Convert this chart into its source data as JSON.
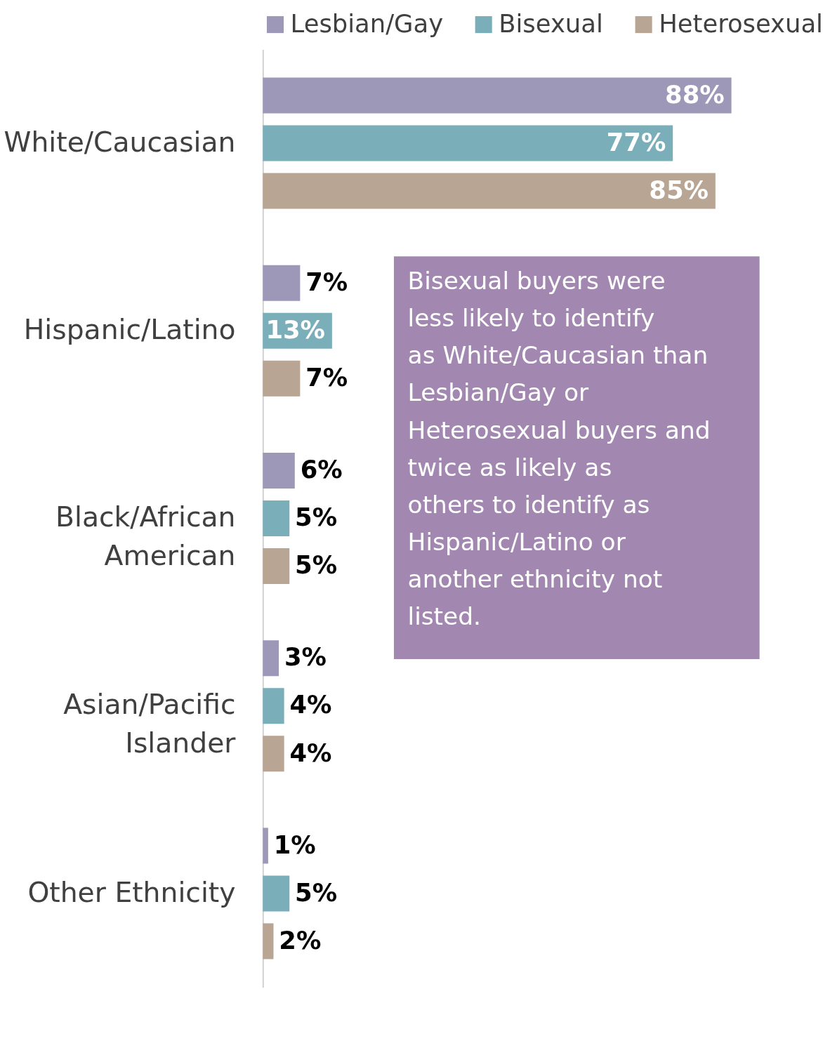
{
  "chart_data": {
    "type": "bar",
    "orientation": "horizontal",
    "legend": "top",
    "categories": [
      "White/Caucasian",
      "Hispanic/Latino",
      "Black/African American",
      "Asian/Pacific Islander",
      "Other Ethnicity"
    ],
    "series": [
      {
        "name": "Lesbian/Gay",
        "color": "#9d97b8",
        "values": [
          88,
          7,
          6,
          3,
          1
        ],
        "value_labels": [
          "88%",
          "7%",
          "6%",
          "3%",
          "1%"
        ]
      },
      {
        "name": "Bisexual",
        "color": "#7aaeb8",
        "values": [
          77,
          13,
          5,
          4,
          5
        ],
        "value_labels": [
          "77%",
          "13%",
          "5%",
          "4%",
          "5%"
        ]
      },
      {
        "name": "Heterosexual",
        "color": "#b8a593",
        "values": [
          85,
          7,
          5,
          4,
          2
        ],
        "value_labels": [
          "85%",
          "7%",
          "5%",
          "4%",
          "2%"
        ]
      }
    ],
    "annotations": [
      "Bisexual buyers were less likely to identify as White/Caucasian than Lesbian/Gay or Heterosexual buyers and twice as likely as others to identify as Hispanic/Latino or another ethnicity not listed."
    ]
  }
}
